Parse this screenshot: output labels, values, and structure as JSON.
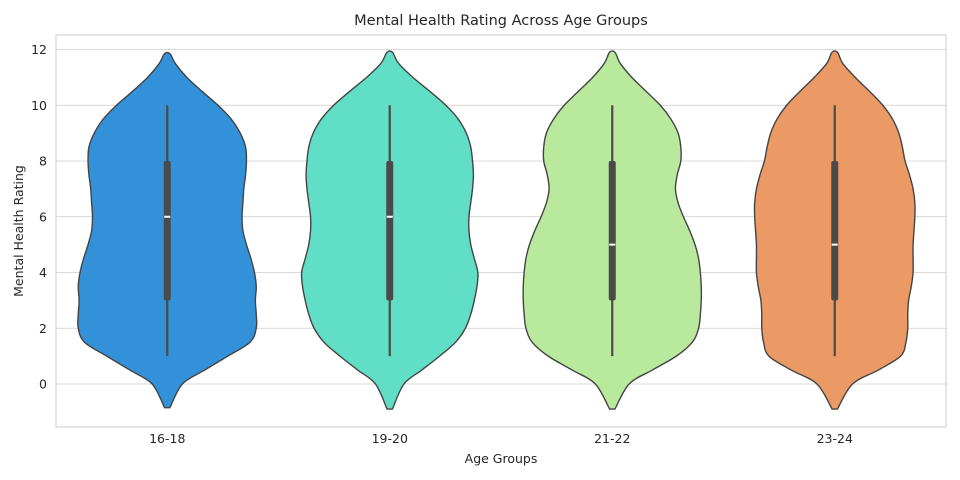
{
  "chart_data": {
    "type": "violin",
    "title": "Mental Health Rating Across Age Groups",
    "xlabel": "Age Groups",
    "ylabel": "Mental Health Rating",
    "ylim": [
      -1.5,
      12.0
    ],
    "yticks": [
      0,
      2,
      4,
      6,
      8,
      10,
      12
    ],
    "grid": true,
    "categories": [
      "16-18",
      "19-20",
      "21-22",
      "23-24"
    ],
    "series": [
      {
        "name": "16-18",
        "color": "#3391d9",
        "min": 1,
        "q1": 3,
        "median": 6,
        "q3": 8,
        "max": 10,
        "kde_min": -0.85,
        "kde_max": 11.85,
        "density": [
          [
            -0.85,
            0.03
          ],
          [
            0,
            0.17
          ],
          [
            0.5,
            0.42
          ],
          [
            1,
            0.68
          ],
          [
            1.5,
            0.93
          ],
          [
            2,
            1.0
          ],
          [
            2.5,
            1.0
          ],
          [
            3,
            0.99
          ],
          [
            3.5,
            1.0
          ],
          [
            4,
            0.98
          ],
          [
            4.5,
            0.94
          ],
          [
            5,
            0.89
          ],
          [
            5.5,
            0.85
          ],
          [
            6,
            0.84
          ],
          [
            6.5,
            0.85
          ],
          [
            7,
            0.86
          ],
          [
            7.5,
            0.88
          ],
          [
            8,
            0.89
          ],
          [
            8.5,
            0.88
          ],
          [
            9,
            0.82
          ],
          [
            9.5,
            0.72
          ],
          [
            10,
            0.57
          ],
          [
            10.5,
            0.39
          ],
          [
            11,
            0.22
          ],
          [
            11.5,
            0.09
          ],
          [
            11.85,
            0.03
          ]
        ]
      },
      {
        "name": "19-20",
        "color": "#60dfc6",
        "min": 1,
        "q1": 3,
        "median": 6,
        "q3": 8,
        "max": 10,
        "kde_min": -0.9,
        "kde_max": 11.9,
        "density": [
          [
            -0.9,
            0.03
          ],
          [
            0,
            0.16
          ],
          [
            0.5,
            0.36
          ],
          [
            1,
            0.56
          ],
          [
            1.5,
            0.74
          ],
          [
            2,
            0.85
          ],
          [
            2.5,
            0.91
          ],
          [
            3,
            0.95
          ],
          [
            3.5,
            0.98
          ],
          [
            4,
            0.99
          ],
          [
            4.5,
            0.95
          ],
          [
            5,
            0.91
          ],
          [
            5.5,
            0.89
          ],
          [
            6,
            0.89
          ],
          [
            6.5,
            0.91
          ],
          [
            7,
            0.93
          ],
          [
            7.5,
            0.94
          ],
          [
            8,
            0.93
          ],
          [
            8.5,
            0.91
          ],
          [
            9,
            0.86
          ],
          [
            9.5,
            0.77
          ],
          [
            10,
            0.63
          ],
          [
            10.5,
            0.45
          ],
          [
            11,
            0.26
          ],
          [
            11.5,
            0.1
          ],
          [
            11.9,
            0.03
          ]
        ]
      },
      {
        "name": "21-22",
        "color": "#b8e99c",
        "min": 1,
        "q1": 3,
        "median": 5,
        "q3": 8,
        "max": 10,
        "kde_min": -0.9,
        "kde_max": 11.9,
        "density": [
          [
            -0.9,
            0.03
          ],
          [
            0,
            0.19
          ],
          [
            0.5,
            0.45
          ],
          [
            1,
            0.72
          ],
          [
            1.5,
            0.9
          ],
          [
            2,
            0.97
          ],
          [
            2.5,
            0.99
          ],
          [
            3,
            1.0
          ],
          [
            3.5,
            1.0
          ],
          [
            4,
            0.99
          ],
          [
            4.5,
            0.97
          ],
          [
            5,
            0.93
          ],
          [
            5.5,
            0.87
          ],
          [
            6,
            0.8
          ],
          [
            6.5,
            0.74
          ],
          [
            7,
            0.71
          ],
          [
            7.5,
            0.73
          ],
          [
            8,
            0.77
          ],
          [
            8.5,
            0.77
          ],
          [
            9,
            0.74
          ],
          [
            9.5,
            0.66
          ],
          [
            10,
            0.54
          ],
          [
            10.5,
            0.38
          ],
          [
            11,
            0.22
          ],
          [
            11.5,
            0.09
          ],
          [
            11.9,
            0.03
          ]
        ]
      },
      {
        "name": "23-24",
        "color": "#eb9965",
        "min": 1,
        "q1": 3,
        "median": 5,
        "q3": 8,
        "max": 10,
        "kde_min": -0.9,
        "kde_max": 11.9,
        "density": [
          [
            -0.9,
            0.03
          ],
          [
            0,
            0.2
          ],
          [
            0.5,
            0.49
          ],
          [
            1,
            0.74
          ],
          [
            1.5,
            0.8
          ],
          [
            2,
            0.82
          ],
          [
            2.5,
            0.82
          ],
          [
            3,
            0.83
          ],
          [
            3.5,
            0.86
          ],
          [
            4,
            0.88
          ],
          [
            4.5,
            0.88
          ],
          [
            5,
            0.88
          ],
          [
            5.5,
            0.89
          ],
          [
            6,
            0.9
          ],
          [
            6.5,
            0.9
          ],
          [
            7,
            0.88
          ],
          [
            7.5,
            0.84
          ],
          [
            8,
            0.79
          ],
          [
            8.5,
            0.76
          ],
          [
            9,
            0.72
          ],
          [
            9.5,
            0.65
          ],
          [
            10,
            0.54
          ],
          [
            10.5,
            0.39
          ],
          [
            11,
            0.23
          ],
          [
            11.5,
            0.09
          ],
          [
            11.9,
            0.03
          ]
        ]
      }
    ]
  }
}
